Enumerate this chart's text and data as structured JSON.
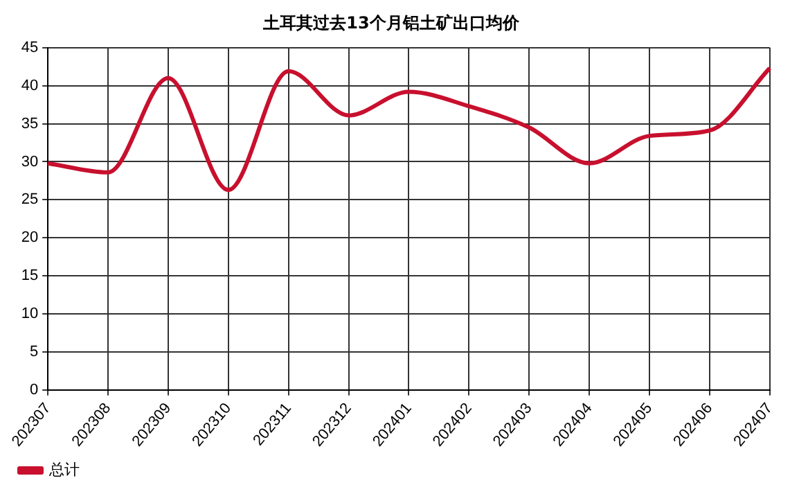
{
  "chart_data": {
    "type": "line",
    "title": "土耳其过去13个月铝土矿出口均价",
    "categories": [
      "202307",
      "202308",
      "202309",
      "202310",
      "202311",
      "202312",
      "202401",
      "202402",
      "202403",
      "202404",
      "202405",
      "202406",
      "202407"
    ],
    "series": [
      {
        "name": "总计",
        "color": "#c8102e",
        "values": [
          29.8,
          28.6,
          41.0,
          26.3,
          41.9,
          36.1,
          39.2,
          37.3,
          34.5,
          29.8,
          33.4,
          34.1,
          42.3
        ]
      }
    ],
    "ylim": [
      0,
      45
    ],
    "yticks": [
      0,
      5,
      10,
      15,
      20,
      25,
      30,
      35,
      40,
      45
    ],
    "grid": true,
    "legend": "bottom left",
    "marker": "none",
    "line_style": "solid"
  }
}
